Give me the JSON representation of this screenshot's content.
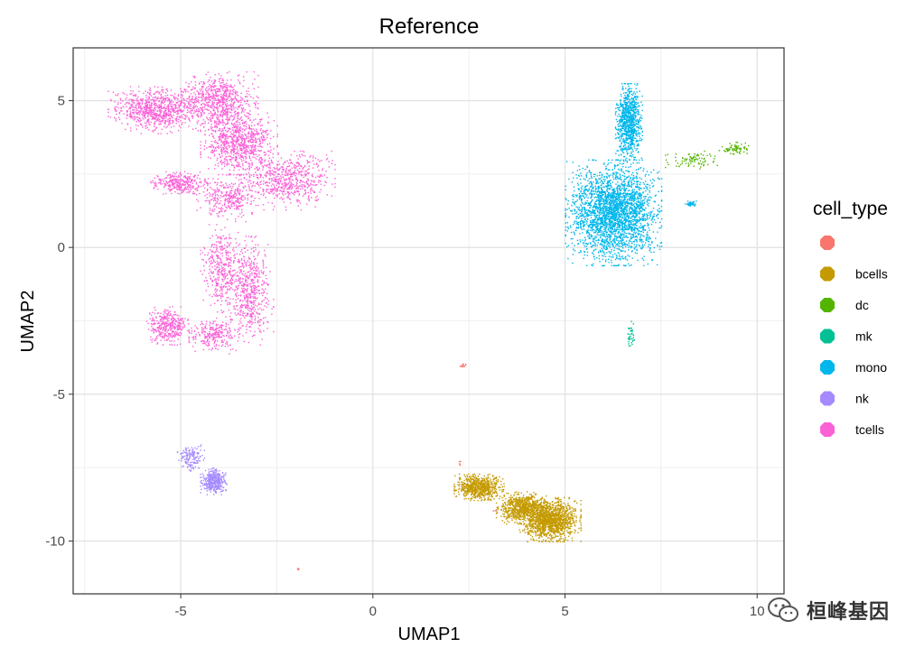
{
  "chart_data": {
    "type": "scatter",
    "title": "Reference",
    "xlabel": "UMAP1",
    "ylabel": "UMAP2",
    "xlim": [
      -7.8,
      10.7
    ],
    "ylim": [
      -11.8,
      6.8
    ],
    "xticks": [
      -5,
      0,
      5,
      10
    ],
    "xtick_labels": [
      "-5",
      "0",
      "5",
      "10"
    ],
    "yticks": [
      5,
      0,
      -5,
      -10
    ],
    "ytick_labels": [
      "5",
      "0",
      "-5",
      "-10"
    ],
    "grid": true,
    "legend": {
      "title": "cell_type",
      "position": "right",
      "entries": [
        {
          "label": "",
          "color": "#F8766D"
        },
        {
          "label": "bcells",
          "color": "#C49A00"
        },
        {
          "label": "dc",
          "color": "#53B400"
        },
        {
          "label": "mk",
          "color": "#00C094"
        },
        {
          "label": "mono",
          "color": "#00B6EB"
        },
        {
          "label": "nk",
          "color": "#A58AFF"
        },
        {
          "label": "tcells",
          "color": "#FB61D7"
        }
      ]
    },
    "clusters": [
      {
        "cell_type": "tcells",
        "color": "#FB61D7",
        "n": 5200,
        "regions": [
          {
            "x": [
              -6.9,
              -4.5
            ],
            "y": [
              3.9,
              5.5
            ],
            "w": 1.3
          },
          {
            "x": [
              -5.0,
              -3.0
            ],
            "y": [
              4.0,
              6.0
            ],
            "w": 1.2
          },
          {
            "x": [
              -4.5,
              -2.5
            ],
            "y": [
              2.5,
              4.6
            ],
            "w": 1.3
          },
          {
            "x": [
              -3.5,
              -1.0
            ],
            "y": [
              1.3,
              3.3
            ],
            "w": 1.0
          },
          {
            "x": [
              -5.8,
              -4.3
            ],
            "y": [
              1.8,
              2.6
            ],
            "w": 0.5
          },
          {
            "x": [
              -4.6,
              -3.0
            ],
            "y": [
              0.9,
              2.5
            ],
            "w": 0.5
          },
          {
            "x": [
              -4.5,
              -3.4
            ],
            "y": [
              -2.2,
              0.8
            ],
            "w": 0.6
          },
          {
            "x": [
              -3.8,
              -2.6
            ],
            "y": [
              -3.3,
              0.4
            ],
            "w": 0.9
          },
          {
            "x": [
              -5.9,
              -4.8
            ],
            "y": [
              -3.3,
              -2.0
            ],
            "w": 0.6
          },
          {
            "x": [
              -4.8,
              -3.5
            ],
            "y": [
              -3.6,
              -2.3
            ],
            "w": 0.4
          }
        ]
      },
      {
        "cell_type": "mono",
        "color": "#00B6EB",
        "n": 3600,
        "regions": [
          {
            "x": [
              5.0,
              7.5
            ],
            "y": [
              -0.6,
              3.0
            ],
            "w": 2.2
          },
          {
            "x": [
              6.3,
              7.0
            ],
            "y": [
              2.9,
              5.6
            ],
            "w": 0.7
          },
          {
            "x": [
              8.1,
              8.4
            ],
            "y": [
              1.4,
              1.6
            ],
            "w": 0.03
          }
        ]
      },
      {
        "cell_type": "dc",
        "color": "#53B400",
        "n": 160,
        "regions": [
          {
            "x": [
              7.6,
              9.0
            ],
            "y": [
              2.7,
              3.3
            ],
            "w": 1.0
          },
          {
            "x": [
              9.0,
              9.8
            ],
            "y": [
              3.2,
              3.6
            ],
            "w": 0.8
          }
        ]
      },
      {
        "cell_type": "mk",
        "color": "#00C094",
        "n": 40,
        "regions": [
          {
            "x": [
              6.6,
              6.8
            ],
            "y": [
              -3.5,
              -2.5
            ],
            "w": 1.0
          }
        ]
      },
      {
        "cell_type": "bcells",
        "color": "#C49A00",
        "n": 2800,
        "regions": [
          {
            "x": [
              2.1,
              3.4
            ],
            "y": [
              -8.6,
              -7.7
            ],
            "w": 0.5
          },
          {
            "x": [
              3.2,
              4.5
            ],
            "y": [
              -9.4,
              -8.3
            ],
            "w": 0.5
          },
          {
            "x": [
              3.8,
              5.4
            ],
            "y": [
              -10.0,
              -8.5
            ],
            "w": 1.0
          }
        ]
      },
      {
        "cell_type": "nk",
        "color": "#A58AFF",
        "n": 520,
        "regions": [
          {
            "x": [
              -4.5,
              -3.8
            ],
            "y": [
              -8.4,
              -7.5
            ],
            "w": 1.0
          },
          {
            "x": [
              -5.1,
              -4.4
            ],
            "y": [
              -7.6,
              -6.7
            ],
            "w": 0.4
          }
        ]
      },
      {
        "cell_type": "",
        "color": "#F8766D",
        "n": 24,
        "regions": [
          {
            "x": [
              2.2,
              2.4
            ],
            "y": [
              -4.1,
              -3.9
            ],
            "w": 0.5
          },
          {
            "x": [
              -2.0,
              -1.9
            ],
            "y": [
              -11.0,
              -10.9
            ],
            "w": 0.15
          },
          {
            "x": [
              2.2,
              2.3
            ],
            "y": [
              -7.4,
              -7.2
            ],
            "w": 0.2
          },
          {
            "x": [
              3.0,
              3.4
            ],
            "y": [
              -9.1,
              -8.9
            ],
            "w": 0.15
          }
        ]
      }
    ]
  },
  "watermark": {
    "text": "桓峰基因",
    "icon": "wechat-icon"
  }
}
